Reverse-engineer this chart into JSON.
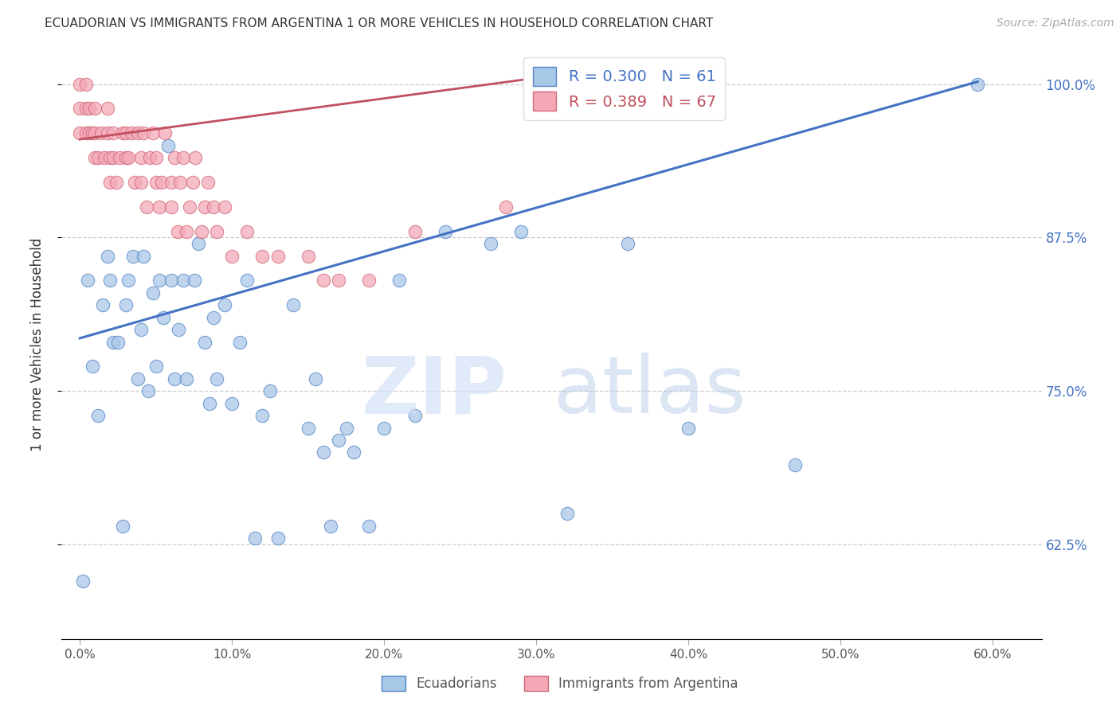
{
  "title": "ECUADORIAN VS IMMIGRANTS FROM ARGENTINA 1 OR MORE VEHICLES IN HOUSEHOLD CORRELATION CHART",
  "source": "Source: ZipAtlas.com",
  "ylabel": "1 or more Vehicles in Household",
  "xlim": [
    -0.012,
    0.632
  ],
  "ylim": [
    0.548,
    1.028
  ],
  "xticks": [
    0.0,
    0.1,
    0.2,
    0.3,
    0.4,
    0.5,
    0.6
  ],
  "xticklabels": [
    "0.0%",
    "10.0%",
    "20.0%",
    "30.0%",
    "40.0%",
    "50.0%",
    "60.0%"
  ],
  "yticks": [
    0.625,
    0.75,
    0.875,
    1.0
  ],
  "yticklabels": [
    "62.5%",
    "75.0%",
    "87.5%",
    "100.0%"
  ],
  "blue_R": 0.3,
  "blue_N": 61,
  "pink_R": 0.389,
  "pink_N": 67,
  "blue_scatter_color": "#a8c8e8",
  "pink_scatter_color": "#f4a8b8",
  "blue_edge_color": "#5585c5",
  "pink_edge_color": "#d06878",
  "blue_line_color": "#4472C4",
  "pink_line_color": "#c05060",
  "blue_line_x0": 0.0,
  "blue_line_y0": 0.793,
  "blue_line_x1": 0.59,
  "blue_line_y1": 1.002,
  "pink_line_x0": 0.0,
  "pink_line_y0": 0.955,
  "pink_line_x1": 0.3,
  "pink_line_y1": 1.005,
  "blue_scatter_x": [
    0.002,
    0.005,
    0.008,
    0.012,
    0.015,
    0.018,
    0.02,
    0.022,
    0.025,
    0.028,
    0.03,
    0.032,
    0.035,
    0.038,
    0.04,
    0.042,
    0.045,
    0.048,
    0.05,
    0.052,
    0.055,
    0.058,
    0.06,
    0.062,
    0.065,
    0.068,
    0.07,
    0.075,
    0.078,
    0.082,
    0.085,
    0.088,
    0.09,
    0.095,
    0.1,
    0.105,
    0.11,
    0.115,
    0.12,
    0.125,
    0.13,
    0.14,
    0.15,
    0.155,
    0.16,
    0.165,
    0.17,
    0.175,
    0.18,
    0.19,
    0.2,
    0.21,
    0.22,
    0.24,
    0.27,
    0.29,
    0.32,
    0.36,
    0.4,
    0.47,
    0.59
  ],
  "blue_scatter_y": [
    0.595,
    0.84,
    0.77,
    0.73,
    0.82,
    0.86,
    0.84,
    0.79,
    0.79,
    0.64,
    0.82,
    0.84,
    0.86,
    0.76,
    0.8,
    0.86,
    0.75,
    0.83,
    0.77,
    0.84,
    0.81,
    0.95,
    0.84,
    0.76,
    0.8,
    0.84,
    0.76,
    0.84,
    0.87,
    0.79,
    0.74,
    0.81,
    0.76,
    0.82,
    0.74,
    0.79,
    0.84,
    0.63,
    0.73,
    0.75,
    0.63,
    0.82,
    0.72,
    0.76,
    0.7,
    0.64,
    0.71,
    0.72,
    0.7,
    0.64,
    0.72,
    0.84,
    0.73,
    0.88,
    0.87,
    0.88,
    0.65,
    0.87,
    0.72,
    0.69,
    1.0
  ],
  "pink_scatter_x": [
    0.0,
    0.0,
    0.0,
    0.004,
    0.004,
    0.004,
    0.006,
    0.006,
    0.008,
    0.01,
    0.01,
    0.01,
    0.012,
    0.014,
    0.016,
    0.018,
    0.018,
    0.02,
    0.02,
    0.022,
    0.022,
    0.024,
    0.026,
    0.028,
    0.03,
    0.03,
    0.032,
    0.034,
    0.036,
    0.038,
    0.04,
    0.04,
    0.042,
    0.044,
    0.046,
    0.048,
    0.05,
    0.05,
    0.052,
    0.054,
    0.056,
    0.06,
    0.06,
    0.062,
    0.064,
    0.066,
    0.068,
    0.07,
    0.072,
    0.074,
    0.076,
    0.08,
    0.082,
    0.084,
    0.088,
    0.09,
    0.095,
    0.1,
    0.11,
    0.12,
    0.13,
    0.15,
    0.16,
    0.17,
    0.19,
    0.22,
    0.28
  ],
  "pink_scatter_y": [
    0.96,
    0.98,
    1.0,
    0.96,
    0.98,
    1.0,
    0.96,
    0.98,
    0.96,
    0.94,
    0.96,
    0.98,
    0.94,
    0.96,
    0.94,
    0.96,
    0.98,
    0.92,
    0.94,
    0.94,
    0.96,
    0.92,
    0.94,
    0.96,
    0.94,
    0.96,
    0.94,
    0.96,
    0.92,
    0.96,
    0.92,
    0.94,
    0.96,
    0.9,
    0.94,
    0.96,
    0.92,
    0.94,
    0.9,
    0.92,
    0.96,
    0.9,
    0.92,
    0.94,
    0.88,
    0.92,
    0.94,
    0.88,
    0.9,
    0.92,
    0.94,
    0.88,
    0.9,
    0.92,
    0.9,
    0.88,
    0.9,
    0.86,
    0.88,
    0.86,
    0.86,
    0.86,
    0.84,
    0.84,
    0.84,
    0.88,
    0.9
  ]
}
